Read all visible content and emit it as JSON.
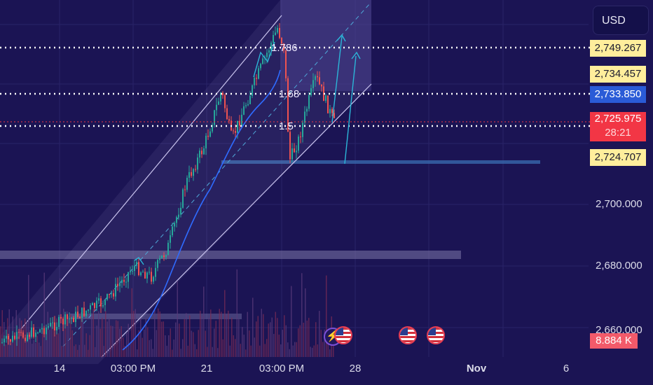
{
  "header": {
    "currency_label": "USD"
  },
  "price_tags": [
    {
      "value": "2,749.267",
      "style": "yellow"
    },
    {
      "value": "2,734.457",
      "style": "yellow"
    },
    {
      "value": "2,733.850",
      "style": "blue"
    },
    {
      "value": "2,725.975",
      "countdown": "28:21",
      "style": "red"
    },
    {
      "value": "2,724.707",
      "style": "yellow"
    }
  ],
  "price_axis": {
    "labels": [
      "2,700.000",
      "2,680.000",
      "2,660.000"
    ]
  },
  "volume_tag": "8.884 K",
  "time_axis": {
    "labels": [
      {
        "text": "14",
        "bold": false
      },
      {
        "text": "03:00 PM",
        "bold": false
      },
      {
        "text": "21",
        "bold": false
      },
      {
        "text": "03:00 PM",
        "bold": false
      },
      {
        "text": "28",
        "bold": false
      },
      {
        "text": "Nov",
        "bold": true
      },
      {
        "text": "6",
        "bold": false
      }
    ]
  },
  "fib_levels": [
    {
      "label": "1.786",
      "price": 2749.267
    },
    {
      "label": "1.68",
      "price": 2733.85
    },
    {
      "label": "1.5",
      "price": 2724.707
    }
  ],
  "event_markers": [
    {
      "icon": "lightning-icon",
      "kind": "news"
    },
    {
      "icon": "us-flag-icon",
      "kind": "economic-event"
    },
    {
      "icon": "us-flag-icon",
      "kind": "economic-event"
    },
    {
      "icon": "us-flag-icon",
      "kind": "economic-event"
    }
  ],
  "colors": {
    "background": "#1b1454",
    "bull_candle": "#26a69a",
    "bear_candle": "#ef5350",
    "moving_average": "#2f6bff",
    "channel": "#c9c4ee",
    "arrow": "#2bb6d8",
    "last_price": "#f23645"
  }
}
